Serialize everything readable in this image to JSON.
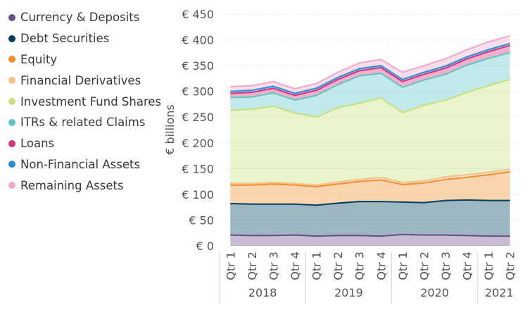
{
  "chart_data": {
    "type": "area",
    "stacked": true,
    "ylabel": "€ billions",
    "ylim": [
      0,
      450
    ],
    "y_ticks": [
      0,
      50,
      100,
      150,
      200,
      250,
      300,
      350,
      400,
      450
    ],
    "y_tick_labels": [
      "€ 0",
      "€ 50",
      "€ 100",
      "€ 150",
      "€ 200",
      "€ 250",
      "€ 300",
      "€ 350",
      "€ 400",
      "€ 450"
    ],
    "categories": [
      "Qtr 1",
      "Qtr 2",
      "Qtr 3",
      "Qtr 4",
      "Qtr 1",
      "Qtr 2",
      "Qtr 3",
      "Qtr 4",
      "Qtr 1",
      "Qtr 2",
      "Qtr 3",
      "Qtr 4",
      "Qtr 1",
      "Qtr 2"
    ],
    "year_groups": [
      {
        "label": "2018",
        "count": 4
      },
      {
        "label": "2019",
        "count": 4
      },
      {
        "label": "2020",
        "count": 4
      },
      {
        "label": "2021",
        "count": 2
      }
    ],
    "legend_position": "left",
    "series": [
      {
        "name": "Currency & Deposits",
        "color": "#6B4C8A",
        "values": [
          21,
          20,
          20,
          21,
          19,
          20,
          20,
          19,
          22,
          21,
          21,
          20,
          19,
          19
        ]
      },
      {
        "name": "Debt Securities",
        "color": "#003F5C",
        "values": [
          61,
          61,
          61,
          60,
          60,
          63,
          66,
          67,
          63,
          63,
          67,
          69,
          69,
          69
        ]
      },
      {
        "name": "Equity",
        "color": "#F28E2B",
        "values": [
          36,
          37,
          39,
          37,
          36,
          37,
          39,
          42,
          34,
          38,
          41,
          44,
          50,
          56
        ]
      },
      {
        "name": "Financial Derivatives",
        "color": "#F8BE8A",
        "values": [
          3,
          3,
          3,
          3,
          3,
          4,
          4,
          5,
          4,
          4,
          5,
          5,
          5,
          5
        ]
      },
      {
        "name": "Investment Fund Shares",
        "color": "#C6E17A",
        "values": [
          142,
          144,
          148,
          137,
          132,
          144,
          148,
          154,
          136,
          147,
          149,
          160,
          168,
          174
        ]
      },
      {
        "name": "ITRs & related Claims",
        "color": "#5EC4C4",
        "values": [
          25,
          24,
          26,
          25,
          42,
          45,
          53,
          48,
          49,
          49,
          50,
          53,
          53,
          52
        ]
      },
      {
        "name": "Loans",
        "color": "#D6307A",
        "values": [
          8,
          9,
          9,
          9,
          10,
          10,
          10,
          11,
          11,
          11,
          12,
          12,
          13,
          14
        ]
      },
      {
        "name": "Non-Financial Assets",
        "color": "#2B8CD4",
        "values": [
          4,
          4,
          4,
          4,
          4,
          4,
          4,
          4,
          4,
          4,
          4,
          4,
          4,
          4
        ]
      },
      {
        "name": "Remaining Assets",
        "color": "#F2A7CB",
        "values": [
          9,
          9,
          9,
          9,
          9,
          10,
          11,
          12,
          14,
          13,
          14,
          14,
          15,
          15
        ]
      }
    ]
  }
}
